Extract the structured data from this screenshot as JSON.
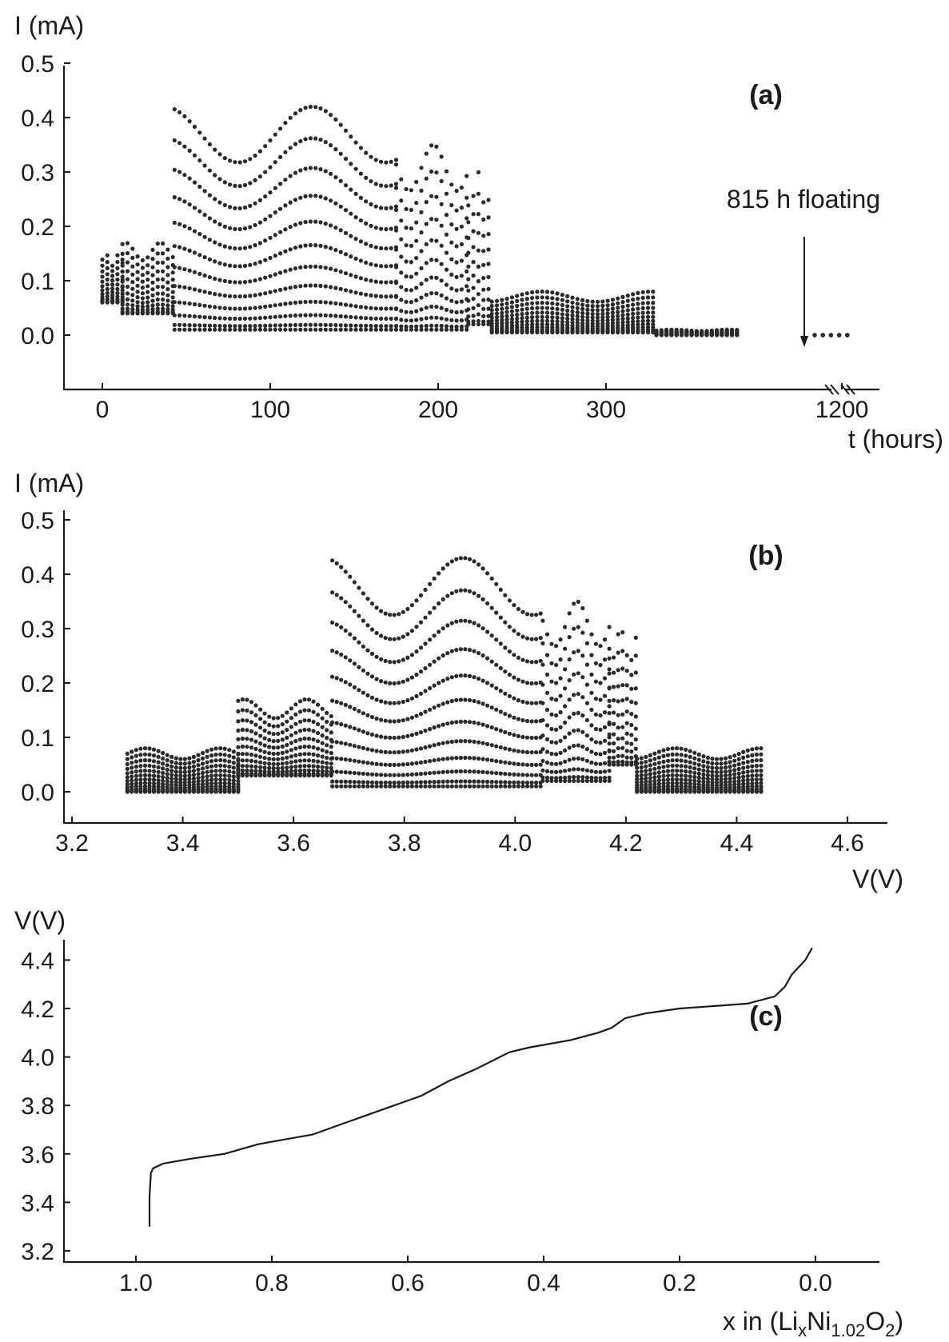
{
  "chart_data": [
    {
      "id": "a",
      "type": "scatter",
      "panel_label": "(a)",
      "ylabel": "I (mA)",
      "xlabel": "t (hours)",
      "ylim": [
        -0.05,
        0.5
      ],
      "yticks": [
        "0.0",
        "0.1",
        "0.2",
        "0.3",
        "0.4",
        "0.5"
      ],
      "xticks": [
        "0",
        "100",
        "200",
        "300",
        "1200"
      ],
      "x_axis_break": true,
      "annotation": "815 h floating",
      "annotation_x": 1175,
      "segments": [
        {
          "x0": 0,
          "x1": 12,
          "hi": 0.15,
          "lo": 0.06
        },
        {
          "x0": 12,
          "x1": 43,
          "hi": 0.17,
          "lo": 0.04
        },
        {
          "x0": 43,
          "x1": 175,
          "hi": 0.42,
          "lo": 0.01
        },
        {
          "x0": 175,
          "x1": 218,
          "hi": 0.35,
          "lo": 0.01
        },
        {
          "x0": 218,
          "x1": 232,
          "hi": 0.3,
          "lo": 0.02
        },
        {
          "x0": 232,
          "x1": 330,
          "hi": 0.08,
          "lo": 0.005
        },
        {
          "x0": 330,
          "x1": 380,
          "hi": 0.01,
          "lo": 0.0
        },
        {
          "x0": 1190,
          "x1": 1203,
          "hi": 0.0,
          "lo": 0.0
        }
      ]
    },
    {
      "id": "b",
      "type": "scatter",
      "panel_label": "(b)",
      "ylabel": "I (mA)",
      "xlabel": "V(V)",
      "xlim": [
        3.2,
        4.6
      ],
      "ylim": [
        -0.05,
        0.5
      ],
      "yticks": [
        "0.0",
        "0.1",
        "0.2",
        "0.3",
        "0.4",
        "0.5"
      ],
      "xticks": [
        "3.2",
        "3.4",
        "3.6",
        "3.8",
        "4.0",
        "4.2",
        "4.4",
        "4.6"
      ],
      "segments": [
        {
          "x0": 3.3,
          "x1": 3.5,
          "hi": 0.08,
          "lo": 0.0
        },
        {
          "x0": 3.5,
          "x1": 3.67,
          "hi": 0.17,
          "lo": 0.03
        },
        {
          "x0": 3.67,
          "x1": 4.05,
          "hi": 0.43,
          "lo": 0.01
        },
        {
          "x0": 4.05,
          "x1": 4.17,
          "hi": 0.35,
          "lo": 0.02
        },
        {
          "x0": 4.17,
          "x1": 4.22,
          "hi": 0.3,
          "lo": 0.05
        },
        {
          "x0": 4.22,
          "x1": 4.45,
          "hi": 0.08,
          "lo": 0.0
        }
      ]
    },
    {
      "id": "c",
      "type": "line",
      "panel_label": "(c)",
      "ylabel": "V(V)",
      "xlabel_parts": [
        "x in (Li",
        "x",
        "Ni",
        "1.02",
        "O",
        "2",
        ")"
      ],
      "xlim": [
        1.1,
        -0.05
      ],
      "ylim": [
        3.2,
        4.55
      ],
      "yticks": [
        "3.2",
        "3.4",
        "3.6",
        "3.8",
        "4.0",
        "4.2",
        "4.4"
      ],
      "xticks": [
        "1.0",
        "0.8",
        "0.6",
        "0.4",
        "0.2",
        "0.0"
      ],
      "x": [
        0.98,
        0.98,
        0.978,
        0.975,
        0.96,
        0.92,
        0.87,
        0.82,
        0.78,
        0.74,
        0.7,
        0.66,
        0.62,
        0.58,
        0.54,
        0.5,
        0.45,
        0.42,
        0.4,
        0.36,
        0.32,
        0.3,
        0.28,
        0.25,
        0.2,
        0.15,
        0.1,
        0.06,
        0.045,
        0.035,
        0.025,
        0.015,
        0.005
      ],
      "y": [
        3.3,
        3.42,
        3.52,
        3.54,
        3.56,
        3.58,
        3.6,
        3.64,
        3.66,
        3.68,
        3.72,
        3.76,
        3.8,
        3.84,
        3.9,
        3.95,
        4.02,
        4.04,
        4.05,
        4.07,
        4.1,
        4.12,
        4.16,
        4.18,
        4.2,
        4.21,
        4.22,
        4.25,
        4.29,
        4.34,
        4.37,
        4.4,
        4.45
      ]
    }
  ]
}
